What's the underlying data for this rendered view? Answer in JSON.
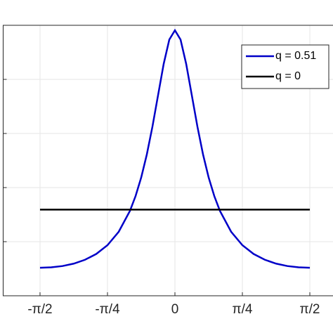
{
  "chart_data": {
    "type": "line",
    "xlim": [
      -2,
      2
    ],
    "xticks": [
      {
        "value": -1.5708,
        "label": "-π/2"
      },
      {
        "value": -0.7854,
        "label": "-π/4"
      },
      0,
      {
        "value": 0.7854,
        "label": "π/4"
      },
      {
        "value": 1.5708,
        "label": "π/2"
      }
    ],
    "ylim": [
      0,
      3.14
    ],
    "yticks": [
      0,
      0.628,
      1.256,
      1.884,
      2.512,
      3.14
    ],
    "grid": true,
    "legend": "upper right",
    "series": [
      {
        "name": "q = 0.51",
        "color": "#0000c8",
        "x": [
          -1.5708,
          -1.4399,
          -1.309,
          -1.1781,
          -1.0472,
          -0.9163,
          -0.7854,
          -0.6545,
          -0.5236,
          -0.4581,
          -0.3927,
          -0.3272,
          -0.2618,
          -0.1963,
          -0.1309,
          -0.0654,
          0,
          0.0654,
          0.1309,
          0.1963,
          0.2618,
          0.3272,
          0.3927,
          0.4581,
          0.5236,
          0.6545,
          0.7854,
          0.9163,
          1.0472,
          1.1781,
          1.309,
          1.4399,
          1.5708
        ],
        "values": [
          0.325,
          0.33,
          0.345,
          0.373,
          0.418,
          0.485,
          0.587,
          0.743,
          0.986,
          1.158,
          1.373,
          1.641,
          1.964,
          2.329,
          2.692,
          2.974,
          3.082,
          2.974,
          2.692,
          2.329,
          1.964,
          1.641,
          1.373,
          1.158,
          0.986,
          0.743,
          0.587,
          0.485,
          0.418,
          0.373,
          0.345,
          0.33,
          0.325
        ]
      },
      {
        "name": "q = 0",
        "color": "#000000",
        "x": [
          -1.5708,
          1.5708
        ],
        "values": [
          1,
          1
        ]
      }
    ]
  }
}
